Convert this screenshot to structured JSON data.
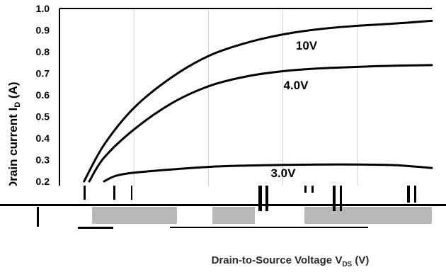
{
  "chart_data": {
    "type": "line",
    "title": "",
    "xlabel": "Drain-to-Source Voltage V",
    "xlabel_sub": "DS",
    "xlabel_unit": " (V)",
    "ylabel": "Drain current I",
    "ylabel_sub": "D",
    "ylabel_unit": " (A)",
    "ylim": [
      0.2,
      1.0
    ],
    "xlim": [
      0,
      5
    ],
    "y_ticks": [
      "1.0",
      "0.9",
      "0.8",
      "0.7",
      "0.6",
      "0.5",
      "0.4",
      "0.3",
      "0.2"
    ],
    "grid": true,
    "series": [
      {
        "name": "10V",
        "x": [
          0.33,
          0.6,
          1.0,
          1.5,
          2.0,
          2.5,
          3.0,
          3.5,
          4.0,
          4.5,
          5.0
        ],
        "y": [
          0.2,
          0.37,
          0.54,
          0.68,
          0.78,
          0.84,
          0.88,
          0.905,
          0.92,
          0.93,
          0.943
        ]
      },
      {
        "name": "4.0V",
        "x": [
          0.4,
          0.6,
          1.0,
          1.5,
          2.0,
          2.5,
          3.0,
          3.5,
          4.0,
          4.5,
          5.0
        ],
        "y": [
          0.2,
          0.31,
          0.44,
          0.56,
          0.64,
          0.685,
          0.71,
          0.723,
          0.73,
          0.735,
          0.738
        ]
      },
      {
        "name": "3.0V",
        "x": [
          0.6,
          0.75,
          1.0,
          1.5,
          2.0,
          2.5,
          3.0,
          3.5,
          4.0,
          4.5,
          5.0
        ],
        "y": [
          0.2,
          0.225,
          0.24,
          0.255,
          0.267,
          0.273,
          0.276,
          0.278,
          0.278,
          0.275,
          0.262
        ]
      }
    ]
  }
}
